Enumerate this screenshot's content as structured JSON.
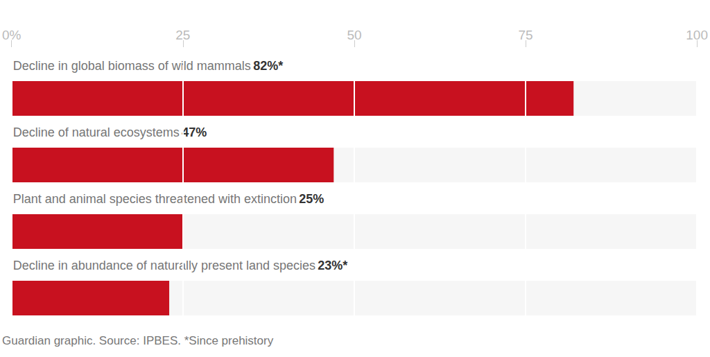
{
  "chart_data": {
    "type": "bar",
    "orientation": "horizontal",
    "categories": [
      "Decline in global biomass of wild mammals",
      "Decline of natural ecosystems",
      "Plant and animal species threatened with extinction",
      "Decline in abundance of naturally present land species"
    ],
    "values": [
      82,
      47,
      25,
      23
    ],
    "value_labels": [
      "82%*",
      "47%",
      "25%",
      "23%*"
    ],
    "color": "#c8111f",
    "xlim": [
      0,
      100
    ],
    "xticks": [
      {
        "value": 0,
        "label": "0%"
      },
      25,
      50,
      75,
      100
    ],
    "grid": true,
    "data_labels": true,
    "tick_labels": "x",
    "source": "Guardian graphic. Source: IPBES. *Since prehistory"
  }
}
